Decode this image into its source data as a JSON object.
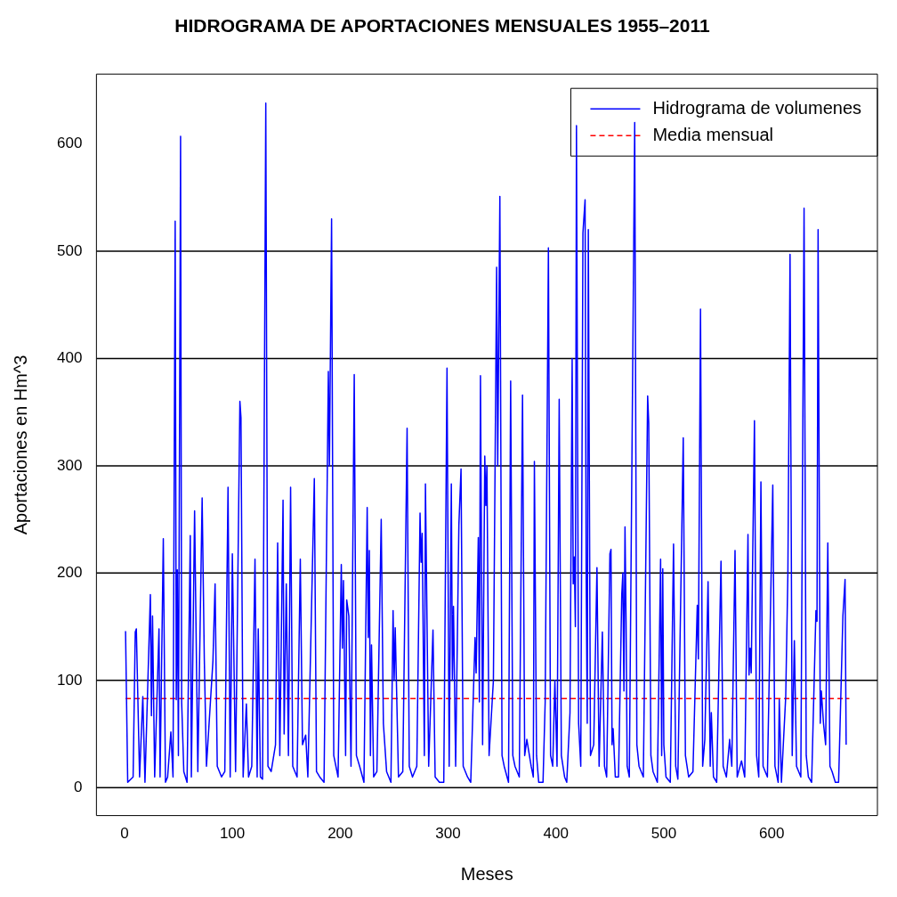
{
  "chart_data": {
    "type": "line",
    "title": "HIDROGRAMA DE APORTACIONES MENSUALES 1955–2011",
    "xlabel": "Meses",
    "ylabel": "Aportaciones en Hm^3",
    "xlim": [
      -26,
      698
    ],
    "ylim": [
      -26,
      665
    ],
    "xticks": [
      0,
      100,
      200,
      300,
      400,
      500,
      600
    ],
    "yticks": [
      0,
      100,
      200,
      300,
      400,
      500,
      600
    ],
    "legend": "top right",
    "marker": "none",
    "ref_lines": [
      {
        "axis": "y",
        "value": 0,
        "color": "#000000"
      },
      {
        "axis": "y",
        "value": 100,
        "color": "#000000"
      },
      {
        "axis": "y",
        "value": 200,
        "color": "#000000"
      },
      {
        "axis": "y",
        "value": 300,
        "color": "#000000"
      },
      {
        "axis": "y",
        "value": 400,
        "color": "#000000"
      },
      {
        "axis": "y",
        "value": 500,
        "color": "#000000"
      }
    ],
    "series": [
      {
        "name": "Hidrograma de volumenes",
        "color": "#0000ff",
        "line_style": "solid",
        "x": [
          1,
          3,
          8,
          10,
          11,
          14,
          17,
          19,
          24,
          25,
          26,
          28,
          32,
          33,
          36,
          38,
          40,
          43,
          45,
          47,
          48,
          49,
          50,
          52,
          53,
          55,
          58,
          61,
          62,
          65,
          68,
          72,
          74,
          76,
          82,
          84,
          86,
          90,
          93,
          96,
          98,
          100,
          103,
          107,
          108,
          110,
          113,
          115,
          118,
          121,
          123,
          124,
          126,
          128,
          131,
          133,
          136,
          140,
          142,
          144,
          147,
          148,
          150,
          152,
          154,
          156,
          160,
          163,
          165,
          168,
          170,
          176,
          178,
          181,
          185,
          189,
          190,
          192,
          194,
          198,
          201,
          202,
          203,
          205,
          206,
          208,
          210,
          213,
          215,
          218,
          222,
          225,
          226,
          227,
          228,
          229,
          231,
          234,
          238,
          240,
          243,
          247,
          249,
          250,
          251,
          254,
          258,
          262,
          264,
          267,
          271,
          274,
          275,
          276,
          278,
          279,
          282,
          286,
          288,
          292,
          296,
          299,
          301,
          303,
          304,
          305,
          307,
          310,
          312,
          314,
          318,
          321,
          325,
          326,
          328,
          329,
          330,
          332,
          334,
          335,
          336,
          338,
          342,
          345,
          346,
          348,
          350,
          352,
          356,
          358,
          360,
          362,
          366,
          369,
          371,
          373,
          377,
          379,
          380,
          382,
          384,
          388,
          390,
          393,
          395,
          397,
          399,
          401,
          403,
          405,
          408,
          410,
          413,
          415,
          416,
          417,
          418,
          419,
          421,
          423,
          425,
          427,
          428,
          429,
          430,
          432,
          435,
          438,
          440,
          443,
          445,
          447,
          450,
          451,
          452,
          453,
          455,
          458,
          461,
          462,
          463,
          464,
          465,
          466,
          468,
          473,
          475,
          477,
          481,
          485,
          486,
          488,
          490,
          494,
          497,
          498,
          499,
          500,
          502,
          506,
          509,
          511,
          513,
          518,
          520,
          523,
          527,
          531,
          532,
          534,
          536,
          538,
          541,
          543,
          544,
          546,
          549,
          553,
          555,
          558,
          561,
          563,
          566,
          568,
          572,
          575,
          578,
          579,
          580,
          581,
          584,
          586,
          588,
          590,
          592,
          596,
          601,
          603,
          606,
          607,
          609,
          613,
          615,
          617,
          619,
          621,
          623,
          627,
          630,
          632,
          634,
          637,
          639,
          641,
          642,
          643,
          645,
          646,
          648,
          650,
          652,
          654,
          656,
          659,
          662,
          666,
          668,
          669
        ],
        "values": [
          146,
          5,
          10,
          145,
          148,
          10,
          85,
          5,
          180,
          67,
          160,
          10,
          148,
          10,
          232,
          5,
          10,
          52,
          10,
          528,
          82,
          203,
          30,
          607,
          80,
          15,
          5,
          235,
          10,
          258,
          15,
          270,
          120,
          20,
          118,
          190,
          20,
          10,
          15,
          280,
          10,
          218,
          15,
          360,
          345,
          10,
          78,
          10,
          20,
          213,
          10,
          148,
          10,
          8,
          638,
          20,
          15,
          40,
          228,
          30,
          268,
          50,
          190,
          30,
          280,
          20,
          10,
          213,
          40,
          49,
          10,
          288,
          15,
          10,
          5,
          388,
          300,
          530,
          30,
          10,
          208,
          130,
          193,
          30,
          175,
          160,
          20,
          385,
          30,
          20,
          5,
          261,
          140,
          221,
          30,
          133,
          10,
          15,
          250,
          60,
          15,
          5,
          165,
          100,
          149,
          10,
          15,
          335,
          20,
          10,
          20,
          256,
          210,
          237,
          30,
          283,
          20,
          147,
          10,
          5,
          5,
          391,
          20,
          283,
          100,
          169,
          20,
          245,
          297,
          20,
          10,
          5,
          140,
          107,
          233,
          80,
          384,
          40,
          309,
          263,
          300,
          30,
          100,
          485,
          300,
          551,
          30,
          20,
          5,
          379,
          30,
          20,
          10,
          366,
          30,
          45,
          20,
          10,
          304,
          30,
          5,
          5,
          80,
          503,
          30,
          20,
          100,
          20,
          362,
          30,
          10,
          5,
          70,
          400,
          190,
          215,
          150,
          617,
          60,
          20,
          517,
          548,
          200,
          60,
          520,
          30,
          40,
          205,
          20,
          145,
          20,
          10,
          218,
          222,
          40,
          55,
          10,
          10,
          180,
          200,
          90,
          243,
          155,
          20,
          10,
          620,
          40,
          20,
          10,
          365,
          340,
          30,
          15,
          5,
          213,
          30,
          204,
          40,
          10,
          5,
          227,
          20,
          8,
          326,
          30,
          10,
          15,
          170,
          120,
          446,
          20,
          45,
          192,
          20,
          70,
          10,
          5,
          211,
          20,
          10,
          45,
          20,
          221,
          10,
          25,
          10,
          236,
          105,
          130,
          107,
          342,
          30,
          10,
          285,
          20,
          10,
          282,
          20,
          5,
          82,
          5,
          85,
          200,
          497,
          30,
          137,
          20,
          10,
          540,
          30,
          10,
          5,
          85,
          165,
          155,
          520,
          60,
          90,
          60,
          40,
          228,
          20,
          15,
          5,
          5,
          160,
          194,
          40
        ]
      },
      {
        "name": "Media mensual",
        "color": "#ff0000",
        "line_style": "dashed",
        "x": [
          1,
          672
        ],
        "values": [
          83,
          83
        ]
      }
    ]
  }
}
